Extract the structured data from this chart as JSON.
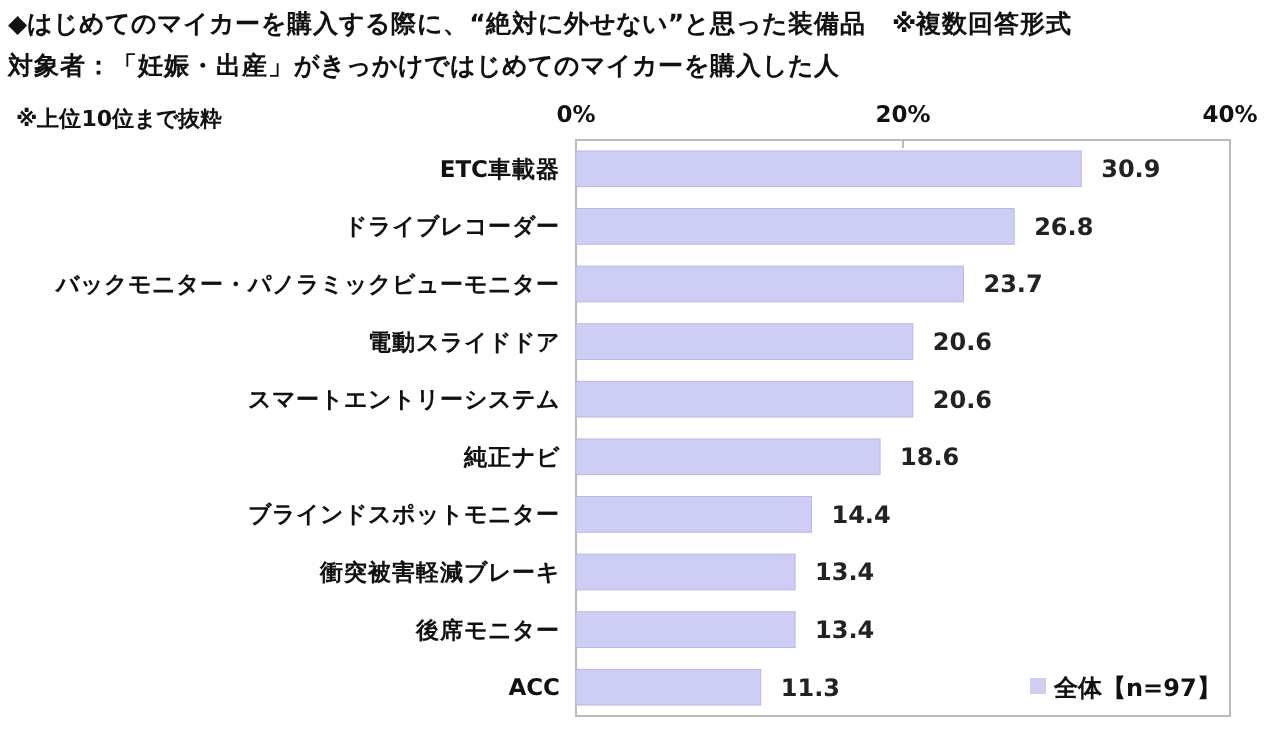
{
  "chart_data": {
    "type": "bar",
    "orientation": "horizontal",
    "title": "◆はじめてのマイカーを購入する際に、“絶対に外せない”と思った装備品　※複数回答形式",
    "subtitle": "対象者：「妊娠・出産」がきっかけではじめてのマイカーを購入した人",
    "annotations": [
      "※上位10位まで抜粋"
    ],
    "categories": [
      "ETC車載器",
      "ドライブレコーダー",
      "バックモニター・パノラミックビューモニター",
      "電動スライドドア",
      "スマートエントリーシステム",
      "純正ナビ",
      "ブラインドスポットモニター",
      "衝突被害軽減ブレーキ",
      "後席モニター",
      "ACC"
    ],
    "series": [
      {
        "name": "全体【n=97】",
        "color": "#cdcdf5",
        "values": [
          30.9,
          26.8,
          23.7,
          20.6,
          20.6,
          18.6,
          14.4,
          13.4,
          13.4,
          11.3
        ]
      }
    ],
    "xlim": [
      0,
      40
    ],
    "xticks": [
      {
        "value": 0,
        "label": "0%"
      },
      {
        "value": 20,
        "label": "20%"
      },
      {
        "value": 40,
        "label": "40%"
      }
    ],
    "data_labels": true,
    "legend": "bottom right",
    "grid": false
  }
}
